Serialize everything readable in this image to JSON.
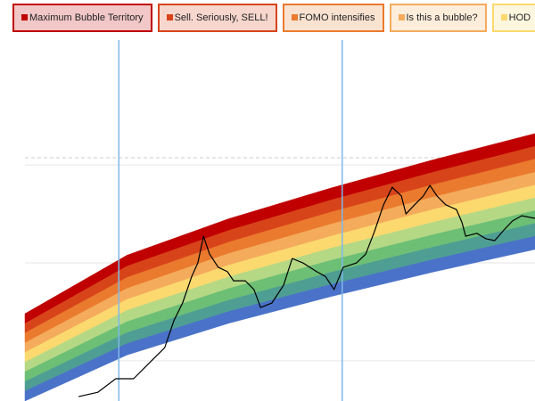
{
  "chart_data": {
    "type": "rainbow",
    "xlim": [
      0,
      100
    ],
    "ylim": [
      0,
      100
    ],
    "yticks": [
      11.0,
      37.8,
      64.6
    ],
    "grid": true,
    "reference_line": 66.6,
    "vlines": [
      18.4,
      62.2
    ],
    "vline_color": "#7fb8e8",
    "band_x": [
      0,
      20,
      40,
      60,
      80,
      100
    ],
    "band_edges": [
      [
        23.9,
        39.9,
        49.9,
        58.3,
        66.0,
        73.2
      ],
      [
        21.2,
        36.9,
        46.7,
        55.0,
        62.6,
        69.7
      ],
      [
        18.6,
        33.8,
        43.5,
        51.7,
        59.2,
        66.2
      ],
      [
        15.9,
        30.8,
        40.4,
        48.4,
        55.8,
        62.6
      ],
      [
        13.3,
        27.8,
        37.2,
        45.1,
        52.4,
        59.1
      ],
      [
        10.6,
        24.8,
        34.0,
        41.8,
        48.9,
        55.6
      ],
      [
        8.0,
        21.7,
        30.8,
        38.5,
        45.5,
        52.1
      ],
      [
        5.3,
        18.7,
        27.6,
        35.2,
        42.1,
        48.6
      ],
      [
        2.7,
        15.7,
        24.5,
        31.9,
        38.7,
        45.1
      ],
      [
        0,
        12.6,
        21.3,
        28.6,
        35.3,
        41.5
      ]
    ],
    "bands": [
      {
        "name": "Maximum Bubble Territory",
        "color": "#c00000"
      },
      {
        "name": "Sell. Seriously, SELL!",
        "color": "#d8441a"
      },
      {
        "name": "FOMO intensifies",
        "color": "#ea7a2e"
      },
      {
        "name": "Is this a bubble?",
        "color": "#f4ab5c"
      },
      {
        "name": "HOD",
        "color": "#fbd96e"
      },
      {
        "color": "#b5d885"
      },
      {
        "color": "#6dbf75"
      },
      {
        "color": "#4f9e94"
      },
      {
        "color": "#4a72c8"
      }
    ],
    "price": {
      "color": "#000000",
      "x": [
        10.5,
        14.3,
        17.8,
        21.3,
        24.8,
        27.4,
        29.2,
        30.9,
        32.7,
        33.9,
        35.0,
        36.2,
        37.9,
        39.7,
        40.9,
        43.2,
        44.9,
        46.2,
        48.4,
        50.7,
        52.4,
        54.5,
        57.2,
        58.9,
        60.6,
        62.4,
        65.0,
        66.8,
        68.5,
        70.3,
        72.0,
        73.8,
        74.7,
        76.4,
        78.1,
        79.4,
        80.8,
        82.5,
        84.6,
        85.7,
        86.4,
        88.6,
        90.4,
        92.1,
        93.9,
        95.6,
        97.4,
        100.0
      ],
      "values": [
        1.2,
        2.4,
        6.1,
        6.1,
        11.0,
        14.6,
        22.0,
        26.8,
        34.1,
        37.8,
        45.1,
        40.2,
        36.6,
        35.4,
        32.9,
        32.9,
        30.5,
        25.6,
        26.8,
        31.7,
        39.0,
        37.8,
        35.4,
        34.1,
        30.5,
        36.6,
        37.8,
        40.2,
        46.3,
        53.7,
        58.5,
        56.1,
        51.2,
        53.7,
        56.1,
        59.0,
        56.1,
        53.7,
        52.4,
        48.8,
        45.1,
        45.9,
        44.4,
        43.9,
        46.8,
        49.3,
        50.7,
        50.0
      ]
    }
  }
}
